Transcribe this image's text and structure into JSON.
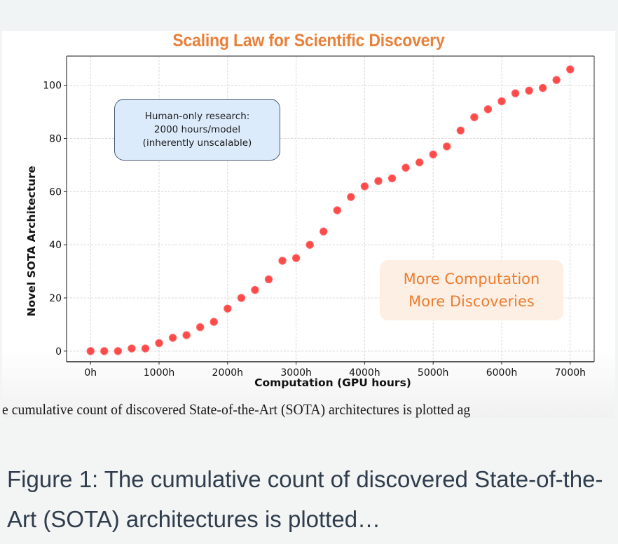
{
  "chart_data": {
    "type": "scatter",
    "title": "Scaling Law for Scientific Discovery",
    "xlabel": "Computation (GPU hours)",
    "ylabel": "Novel SOTA Architecture",
    "xlim": [
      -350,
      7350
    ],
    "ylim": [
      -4,
      111
    ],
    "x_ticks": [
      0,
      1000,
      2000,
      3000,
      4000,
      5000,
      6000,
      7000
    ],
    "x_tick_labels": [
      "0h",
      "1000h",
      "2000h",
      "3000h",
      "4000h",
      "5000h",
      "6000h",
      "7000h"
    ],
    "y_ticks": [
      0,
      20,
      40,
      60,
      80,
      100
    ],
    "y_tick_labels": [
      "0",
      "20",
      "40",
      "60",
      "80",
      "100"
    ],
    "grid": true,
    "marker_color": "#ff2a2a",
    "series": [
      {
        "name": "Novel SOTA Architecture",
        "x": [
          0,
          200,
          400,
          600,
          800,
          1000,
          1200,
          1400,
          1600,
          1800,
          2000,
          2200,
          2400,
          2600,
          2800,
          3000,
          3200,
          3400,
          3600,
          3800,
          4000,
          4200,
          4400,
          4600,
          4800,
          5000,
          5200,
          5400,
          5600,
          5800,
          6000,
          6200,
          6400,
          6600,
          6800,
          7000
        ],
        "y": [
          0,
          0,
          0,
          1,
          1,
          3,
          5,
          6,
          9,
          11,
          16,
          20,
          23,
          27,
          34,
          35,
          40,
          45,
          53,
          58,
          62,
          64,
          65,
          69,
          71,
          74,
          77,
          83,
          88,
          91,
          94,
          97,
          98,
          99,
          102,
          106
        ]
      }
    ],
    "annotations": [
      {
        "lines": [
          "Human-only research:",
          "2000 hours/model",
          "(inherently unscalable)"
        ],
        "color": "#1a1a1a",
        "background": "#dcebfb"
      },
      {
        "lines": [
          "More Computation",
          "More Discoveries"
        ],
        "color": "#ec7d31",
        "background": "#fdefe3"
      }
    ]
  },
  "colors": {
    "title": "#e8803a",
    "accent_orange": "#ec7d31",
    "caption_text": "#2f3d4c"
  },
  "paper_snippet": "e cumulative count of discovered State-of-the-Art (SOTA) architectures is plotted ag",
  "caption": "Figure 1: The cumulative count of discovered State-of-the-Art (SOTA) architectures is plotted…"
}
